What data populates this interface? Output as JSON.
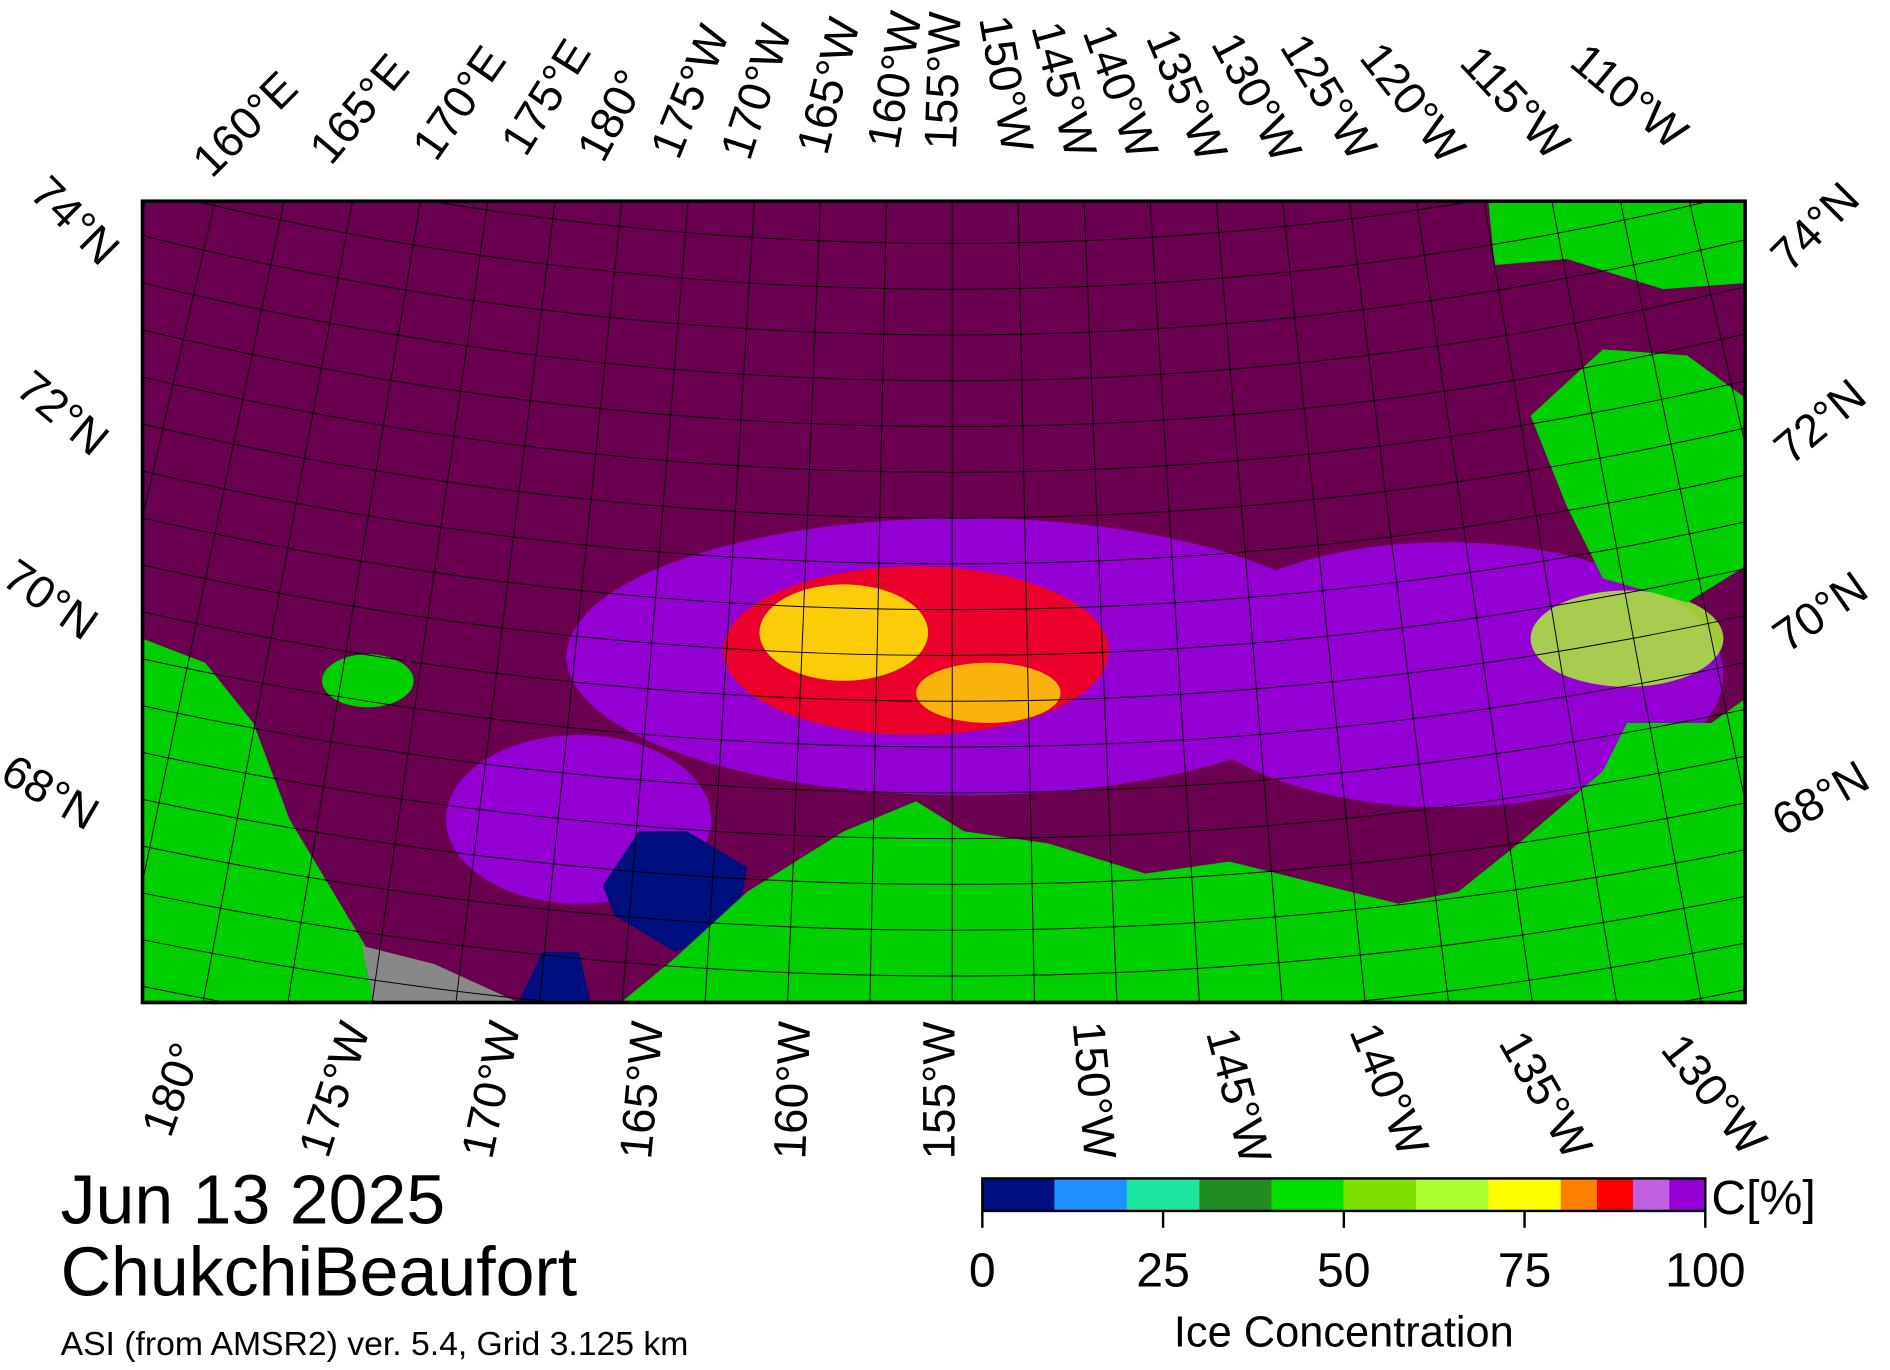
{
  "map": {
    "top_labels": [
      "160°E",
      "165°E",
      "170°E",
      "175°E",
      "180°",
      "175°W",
      "170°W",
      "165°W",
      "160°W",
      "155°W",
      "150°W",
      "145°W",
      "140°W",
      "135°W",
      "130°W",
      "125°W",
      "120°W",
      "115°W",
      "110°W"
    ],
    "left_labels": [
      "74°N",
      "72°N",
      "70°N",
      "68°N"
    ],
    "right_labels": [
      "74°N",
      "72°N",
      "70°N",
      "68°N"
    ],
    "bottom_labels": [
      "180°",
      "175°W",
      "170°W",
      "165°W",
      "160°W",
      "155°W",
      "150°W",
      "145°W",
      "140°W",
      "135°W",
      "130°W"
    ]
  },
  "title": {
    "date": "Jun 13 2025",
    "region": "ChukchiBeaufort",
    "source": "ASI (from AMSR2) ver. 5.4,  Grid 3.125 km"
  },
  "colorbar": {
    "unit": "C[%]",
    "label": "Ice Concentration",
    "bounds": [
      0,
      10,
      20,
      30,
      40,
      50,
      60,
      70,
      80,
      85,
      90,
      95,
      100
    ],
    "colors": [
      "#000f80",
      "#1e90ff",
      "#1ee6a0",
      "#228b22",
      "#00e000",
      "#7fe000",
      "#adff2f",
      "#ffff00",
      "#ff8000",
      "#ff0000",
      "#c060e0",
      "#9400d3"
    ],
    "ticks": [
      0,
      25,
      50,
      75,
      100
    ]
  }
}
